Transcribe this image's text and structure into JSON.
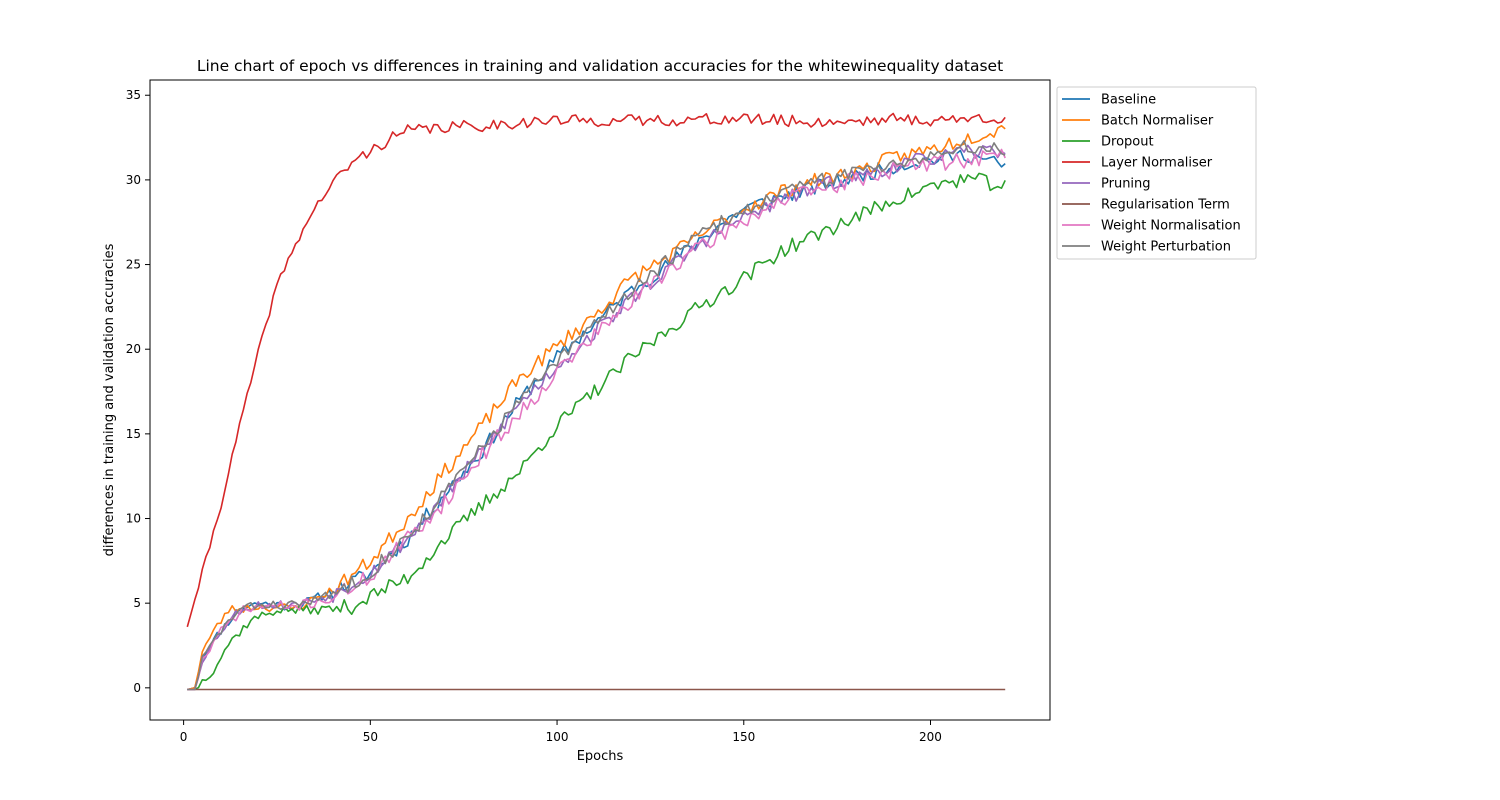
{
  "chart_data": {
    "type": "line",
    "title": "Line chart of epoch vs differences in training and validation accuracies for the whitewinequality dataset",
    "xlabel": "Epochs",
    "ylabel": "differences in training and validation accuracies",
    "xlim": [
      -9,
      232
    ],
    "ylim": [
      -1.9,
      35.9
    ],
    "xticks": [
      0,
      50,
      100,
      150,
      200
    ],
    "yticks": [
      0,
      5,
      10,
      15,
      20,
      25,
      30,
      35
    ],
    "grid": false,
    "legend_position": "outside-top-right",
    "x_range": [
      1,
      220
    ],
    "series": [
      {
        "name": "Baseline",
        "color": "#1f77b4",
        "noise": 0.45,
        "seed": 11,
        "anchors": [
          [
            1,
            -0.1
          ],
          [
            3,
            0.0
          ],
          [
            5,
            1.8
          ],
          [
            10,
            3.4
          ],
          [
            15,
            4.7
          ],
          [
            20,
            5.0
          ],
          [
            30,
            4.8
          ],
          [
            40,
            5.7
          ],
          [
            50,
            6.8
          ],
          [
            60,
            8.8
          ],
          [
            70,
            11.5
          ],
          [
            80,
            14.0
          ],
          [
            90,
            17.0
          ],
          [
            100,
            19.5
          ],
          [
            110,
            21.5
          ],
          [
            120,
            23.5
          ],
          [
            130,
            25.0
          ],
          [
            140,
            26.8
          ],
          [
            150,
            28.3
          ],
          [
            160,
            29.0
          ],
          [
            170,
            29.6
          ],
          [
            180,
            30.2
          ],
          [
            190,
            30.8
          ],
          [
            200,
            31.2
          ],
          [
            210,
            31.5
          ],
          [
            220,
            30.8
          ]
        ]
      },
      {
        "name": "Batch Normaliser",
        "color": "#ff7f0e",
        "noise": 0.45,
        "seed": 23,
        "anchors": [
          [
            1,
            -0.1
          ],
          [
            3,
            0.0
          ],
          [
            5,
            2.2
          ],
          [
            8,
            3.3
          ],
          [
            12,
            4.6
          ],
          [
            20,
            4.8
          ],
          [
            30,
            4.7
          ],
          [
            40,
            5.8
          ],
          [
            50,
            7.5
          ],
          [
            60,
            10.0
          ],
          [
            70,
            12.8
          ],
          [
            80,
            15.5
          ],
          [
            90,
            18.3
          ],
          [
            100,
            20.2
          ],
          [
            110,
            22.0
          ],
          [
            120,
            24.2
          ],
          [
            130,
            25.5
          ],
          [
            140,
            27.0
          ],
          [
            150,
            28.3
          ],
          [
            160,
            29.3
          ],
          [
            170,
            30.0
          ],
          [
            180,
            30.5
          ],
          [
            190,
            31.3
          ],
          [
            200,
            31.8
          ],
          [
            210,
            32.5
          ],
          [
            220,
            33.1
          ]
        ]
      },
      {
        "name": "Dropout",
        "color": "#2ca02c",
        "noise": 0.45,
        "seed": 37,
        "anchors": [
          [
            1,
            -0.1
          ],
          [
            3,
            -0.1
          ],
          [
            5,
            0.4
          ],
          [
            8,
            1.1
          ],
          [
            12,
            2.6
          ],
          [
            18,
            4.0
          ],
          [
            25,
            4.6
          ],
          [
            35,
            4.6
          ],
          [
            45,
            4.8
          ],
          [
            50,
            5.4
          ],
          [
            60,
            6.5
          ],
          [
            70,
            8.8
          ],
          [
            80,
            10.8
          ],
          [
            90,
            12.8
          ],
          [
            100,
            15.5
          ],
          [
            110,
            17.5
          ],
          [
            120,
            19.5
          ],
          [
            130,
            21.2
          ],
          [
            140,
            22.8
          ],
          [
            150,
            24.2
          ],
          [
            160,
            25.8
          ],
          [
            170,
            26.8
          ],
          [
            180,
            27.8
          ],
          [
            190,
            28.8
          ],
          [
            200,
            29.6
          ],
          [
            210,
            30.1
          ],
          [
            220,
            29.6
          ]
        ]
      },
      {
        "name": "Layer Normaliser",
        "color": "#d62728",
        "noise": 0.35,
        "seed": 41,
        "anchors": [
          [
            1,
            3.6
          ],
          [
            5,
            6.8
          ],
          [
            10,
            10.8
          ],
          [
            15,
            15.5
          ],
          [
            20,
            19.8
          ],
          [
            25,
            23.8
          ],
          [
            30,
            26.2
          ],
          [
            35,
            28.3
          ],
          [
            40,
            29.8
          ],
          [
            45,
            31.0
          ],
          [
            50,
            31.7
          ],
          [
            55,
            32.4
          ],
          [
            60,
            32.9
          ],
          [
            70,
            33.1
          ],
          [
            80,
            33.2
          ],
          [
            90,
            33.4
          ],
          [
            100,
            33.5
          ],
          [
            120,
            33.5
          ],
          [
            150,
            33.6
          ],
          [
            170,
            33.4
          ],
          [
            190,
            33.6
          ],
          [
            200,
            33.5
          ],
          [
            220,
            33.7
          ]
        ]
      },
      {
        "name": "Pruning",
        "color": "#9467bd",
        "noise": 0.45,
        "seed": 53,
        "anchors": [
          [
            1,
            -0.1
          ],
          [
            3,
            -0.1
          ],
          [
            5,
            1.7
          ],
          [
            10,
            3.4
          ],
          [
            15,
            4.6
          ],
          [
            20,
            4.9
          ],
          [
            30,
            4.9
          ],
          [
            40,
            5.5
          ],
          [
            50,
            6.8
          ],
          [
            60,
            8.8
          ],
          [
            70,
            11.3
          ],
          [
            80,
            14.0
          ],
          [
            90,
            16.8
          ],
          [
            100,
            19.0
          ],
          [
            110,
            21.0
          ],
          [
            120,
            23.0
          ],
          [
            130,
            24.8
          ],
          [
            140,
            26.5
          ],
          [
            150,
            27.8
          ],
          [
            160,
            28.8
          ],
          [
            170,
            29.6
          ],
          [
            180,
            30.2
          ],
          [
            190,
            30.8
          ],
          [
            200,
            31.3
          ],
          [
            210,
            31.6
          ],
          [
            220,
            31.8
          ]
        ]
      },
      {
        "name": "Regularisation Term",
        "color": "#8c564b",
        "noise": 0,
        "seed": 61,
        "anchors": [
          [
            1,
            -0.1
          ],
          [
            220,
            -0.1
          ]
        ]
      },
      {
        "name": "Weight Normalisation",
        "color": "#e377c2",
        "noise": 0.5,
        "seed": 71,
        "anchors": [
          [
            1,
            -0.1
          ],
          [
            3,
            -0.1
          ],
          [
            5,
            1.6
          ],
          [
            10,
            3.3
          ],
          [
            15,
            4.5
          ],
          [
            20,
            4.8
          ],
          [
            30,
            4.8
          ],
          [
            40,
            5.3
          ],
          [
            50,
            6.6
          ],
          [
            60,
            8.8
          ],
          [
            70,
            11.0
          ],
          [
            80,
            13.8
          ],
          [
            90,
            16.2
          ],
          [
            100,
            18.7
          ],
          [
            110,
            20.8
          ],
          [
            120,
            22.8
          ],
          [
            130,
            24.8
          ],
          [
            140,
            26.2
          ],
          [
            150,
            27.6
          ],
          [
            160,
            28.8
          ],
          [
            170,
            29.4
          ],
          [
            180,
            30.0
          ],
          [
            190,
            30.6
          ],
          [
            200,
            31.0
          ],
          [
            210,
            31.2
          ],
          [
            220,
            31.5
          ]
        ]
      },
      {
        "name": "Weight Perturbation",
        "color": "#7f7f7f",
        "noise": 0.45,
        "seed": 83,
        "anchors": [
          [
            1,
            -0.1
          ],
          [
            3,
            -0.1
          ],
          [
            5,
            1.7
          ],
          [
            10,
            3.4
          ],
          [
            15,
            4.6
          ],
          [
            20,
            4.9
          ],
          [
            30,
            4.9
          ],
          [
            40,
            5.5
          ],
          [
            50,
            6.9
          ],
          [
            60,
            8.9
          ],
          [
            70,
            11.5
          ],
          [
            80,
            14.2
          ],
          [
            90,
            17.0
          ],
          [
            100,
            19.2
          ],
          [
            110,
            21.5
          ],
          [
            120,
            23.5
          ],
          [
            130,
            25.3
          ],
          [
            140,
            27.0
          ],
          [
            150,
            28.2
          ],
          [
            160,
            29.2
          ],
          [
            170,
            29.9
          ],
          [
            180,
            30.5
          ],
          [
            190,
            31.0
          ],
          [
            200,
            31.5
          ],
          [
            210,
            31.9
          ],
          [
            220,
            31.9
          ]
        ]
      }
    ]
  }
}
